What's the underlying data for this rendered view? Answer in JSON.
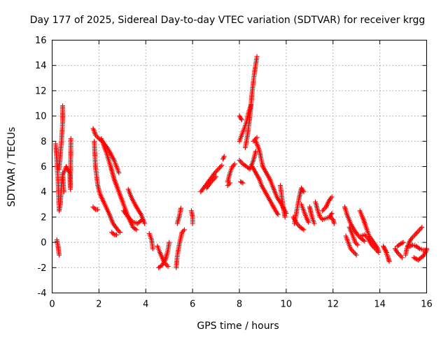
{
  "chart_data": {
    "type": "scatter",
    "title": "Day 177 of 2025, Sidereal Day-to-day VTEC variation (SDTVAR) for receiver krgg",
    "xlabel": "GPS time / hours",
    "ylabel": "SDTVAR / TECUs",
    "xlim": [
      0,
      16
    ],
    "ylim": [
      -4,
      16
    ],
    "xticks": [
      0,
      2,
      4,
      6,
      8,
      10,
      12,
      14,
      16
    ],
    "yticks": [
      -4,
      -2,
      0,
      2,
      4,
      6,
      8,
      10,
      12,
      14,
      16
    ],
    "xtick_labels": [
      "0",
      "2",
      "4",
      "6",
      "8",
      "10",
      "12",
      "14",
      "16"
    ],
    "ytick_labels": [
      "-4",
      "-2",
      "0",
      "2",
      "4",
      "6",
      "8",
      "10",
      "12",
      "14",
      "16"
    ],
    "grid": true,
    "marker": "+",
    "series": [
      {
        "name": "SDTVAR",
        "color": "#ff0000",
        "tracks": [
          [
            [
              0.15,
              7.8
            ],
            [
              0.2,
              6.5
            ],
            [
              0.25,
              5.0
            ],
            [
              0.28,
              3.5
            ],
            [
              0.3,
              2.5
            ],
            [
              0.35,
              3.0
            ],
            [
              0.4,
              4.5
            ],
            [
              0.45,
              5.5
            ],
            [
              0.5,
              4.0
            ]
          ],
          [
            [
              0.3,
              5.8
            ],
            [
              0.35,
              7.0
            ],
            [
              0.4,
              8.0
            ],
            [
              0.45,
              9.5
            ],
            [
              0.45,
              10.8
            ]
          ],
          [
            [
              0.2,
              0.2
            ],
            [
              0.25,
              -0.3
            ],
            [
              0.3,
              -1.0
            ]
          ],
          [
            [
              0.5,
              5.5
            ],
            [
              0.6,
              6.0
            ],
            [
              0.75,
              5.5
            ],
            [
              0.78,
              4.2
            ],
            [
              0.8,
              8.2
            ]
          ],
          [
            [
              1.75,
              9.0
            ],
            [
              1.8,
              8.8
            ],
            [
              1.85,
              8.5
            ],
            [
              2.0,
              8.2
            ],
            [
              2.15,
              8.0
            ],
            [
              2.35,
              7.5
            ],
            [
              2.5,
              7.0
            ],
            [
              2.65,
              6.5
            ],
            [
              2.75,
              6.0
            ],
            [
              2.85,
              5.5
            ]
          ],
          [
            [
              1.8,
              8.0
            ],
            [
              1.85,
              6.0
            ],
            [
              1.95,
              4.5
            ],
            [
              2.05,
              3.8
            ],
            [
              2.25,
              3.0
            ],
            [
              2.45,
              2.2
            ],
            [
              2.6,
              1.5
            ],
            [
              2.8,
              1.0
            ],
            [
              2.9,
              0.8
            ]
          ],
          [
            [
              1.75,
              2.8
            ],
            [
              1.85,
              2.6
            ],
            [
              1.95,
              2.6
            ]
          ],
          [
            [
              2.1,
              8.2
            ],
            [
              2.3,
              7.2
            ],
            [
              2.5,
              6.0
            ],
            [
              2.65,
              5.0
            ],
            [
              2.85,
              4.0
            ],
            [
              3.05,
              3.0
            ],
            [
              3.25,
              2.0
            ],
            [
              3.45,
              1.2
            ],
            [
              3.6,
              1.0
            ]
          ],
          [
            [
              2.55,
              0.8
            ],
            [
              2.65,
              0.6
            ],
            [
              2.75,
              0.6
            ]
          ],
          [
            [
              3.25,
              4.2
            ],
            [
              3.4,
              3.5
            ],
            [
              3.6,
              2.8
            ],
            [
              3.8,
              2.2
            ],
            [
              3.95,
              1.5
            ]
          ],
          [
            [
              3.05,
              2.5
            ],
            [
              3.25,
              2.0
            ],
            [
              3.45,
              1.6
            ],
            [
              3.65,
              1.5
            ],
            [
              3.85,
              1.8
            ]
          ],
          [
            [
              4.15,
              0.7
            ],
            [
              4.25,
              0.2
            ],
            [
              4.3,
              -0.5
            ]
          ],
          [
            [
              4.5,
              -0.3
            ],
            [
              4.6,
              -0.8
            ],
            [
              4.7,
              -1.2
            ],
            [
              4.8,
              -1.6
            ],
            [
              4.95,
              -1.9
            ]
          ],
          [
            [
              4.55,
              -2.0
            ],
            [
              4.7,
              -1.8
            ],
            [
              4.85,
              -1.3
            ],
            [
              4.95,
              -0.6
            ],
            [
              5.0,
              0.0
            ]
          ],
          [
            [
              5.3,
              -2.0
            ],
            [
              5.35,
              -1.0
            ],
            [
              5.45,
              0.0
            ],
            [
              5.55,
              0.8
            ],
            [
              5.65,
              1.0
            ]
          ],
          [
            [
              5.35,
              1.5
            ],
            [
              5.45,
              2.2
            ],
            [
              5.5,
              2.7
            ]
          ],
          [
            [
              5.95,
              2.5
            ],
            [
              6.0,
              2.0
            ],
            [
              6.0,
              1.5
            ]
          ],
          [
            [
              6.35,
              4.0
            ],
            [
              6.55,
              4.5
            ],
            [
              6.75,
              5.0
            ],
            [
              6.95,
              5.5
            ],
            [
              7.1,
              5.8
            ],
            [
              7.25,
              6.1
            ]
          ],
          [
            [
              6.6,
              4.3
            ],
            [
              6.8,
              4.8
            ],
            [
              7.0,
              5.2
            ]
          ],
          [
            [
              7.3,
              6.6
            ],
            [
              7.35,
              6.8
            ]
          ],
          [
            [
              7.5,
              4.8
            ],
            [
              7.6,
              5.5
            ],
            [
              7.7,
              6.0
            ],
            [
              7.8,
              6.2
            ]
          ],
          [
            [
              7.5,
              4.5
            ],
            [
              7.6,
              4.7
            ]
          ],
          [
            [
              8.0,
              8.0
            ],
            [
              8.1,
              8.5
            ],
            [
              8.2,
              9.0
            ],
            [
              8.3,
              9.5
            ],
            [
              8.4,
              10.3
            ],
            [
              8.5,
              10.9
            ]
          ],
          [
            [
              8.25,
              7.5
            ],
            [
              8.35,
              8.5
            ],
            [
              8.45,
              10.0
            ],
            [
              8.55,
              12.0
            ],
            [
              8.65,
              13.5
            ],
            [
              8.75,
              14.7
            ]
          ],
          [
            [
              8.0,
              10.0
            ],
            [
              8.1,
              9.7
            ]
          ],
          [
            [
              8.0,
              6.5
            ],
            [
              8.15,
              6.2
            ],
            [
              8.3,
              6.0
            ],
            [
              8.45,
              5.8
            ],
            [
              8.6,
              6.5
            ],
            [
              8.7,
              7.2
            ]
          ],
          [
            [
              8.05,
              4.8
            ],
            [
              8.15,
              4.7
            ]
          ],
          [
            [
              8.6,
              8.0
            ],
            [
              8.75,
              8.3
            ]
          ],
          [
            [
              8.55,
              6.0
            ],
            [
              8.7,
              5.5
            ],
            [
              8.85,
              5.0
            ],
            [
              8.95,
              4.5
            ],
            [
              9.1,
              4.0
            ],
            [
              9.25,
              3.5
            ],
            [
              9.4,
              3.0
            ],
            [
              9.55,
              2.5
            ],
            [
              9.65,
              2.2
            ]
          ],
          [
            [
              8.7,
              8.0
            ],
            [
              8.85,
              7.3
            ],
            [
              9.0,
              6.0
            ],
            [
              9.15,
              5.5
            ],
            [
              9.3,
              5.0
            ],
            [
              9.45,
              4.3
            ],
            [
              9.6,
              3.6
            ],
            [
              9.8,
              3.0
            ],
            [
              10.0,
              2.3
            ]
          ],
          [
            [
              9.75,
              4.5
            ],
            [
              9.85,
              3.0
            ],
            [
              9.95,
              2.0
            ]
          ],
          [
            [
              10.35,
              1.5
            ],
            [
              10.45,
              2.5
            ],
            [
              10.55,
              3.5
            ],
            [
              10.65,
              4.3
            ],
            [
              10.75,
              4.0
            ]
          ],
          [
            [
              10.3,
              2.0
            ],
            [
              10.45,
              1.5
            ],
            [
              10.6,
              1.2
            ],
            [
              10.75,
              1.0
            ]
          ],
          [
            [
              10.65,
              3.0
            ],
            [
              10.75,
              2.5
            ],
            [
              10.85,
              2.0
            ],
            [
              10.95,
              1.6
            ]
          ],
          [
            [
              11.0,
              2.8
            ],
            [
              11.1,
              2.0
            ],
            [
              11.2,
              1.5
            ]
          ],
          [
            [
              11.25,
              3.2
            ],
            [
              11.35,
              2.5
            ],
            [
              11.45,
              2.0
            ],
            [
              11.55,
              1.8
            ],
            [
              11.7,
              1.9
            ],
            [
              11.85,
              2.0
            ],
            [
              11.95,
              2.3
            ]
          ],
          [
            [
              11.55,
              2.5
            ],
            [
              11.7,
              2.8
            ],
            [
              11.8,
              3.2
            ],
            [
              11.9,
              3.5
            ],
            [
              11.95,
              3.6
            ]
          ],
          [
            [
              11.9,
              2.0
            ],
            [
              12.0,
              1.8
            ],
            [
              12.05,
              1.5
            ]
          ],
          [
            [
              12.5,
              2.8
            ],
            [
              12.6,
              2.2
            ],
            [
              12.75,
              1.5
            ],
            [
              12.9,
              1.0
            ],
            [
              13.05,
              0.6
            ],
            [
              13.2,
              0.3
            ],
            [
              13.35,
              0.1
            ]
          ],
          [
            [
              12.55,
              0.5
            ],
            [
              12.65,
              0.0
            ],
            [
              12.75,
              -0.5
            ],
            [
              12.9,
              -0.8
            ],
            [
              13.0,
              -1.0
            ]
          ],
          [
            [
              12.7,
              1.2
            ],
            [
              12.85,
              0.5
            ],
            [
              12.95,
              0.0
            ],
            [
              13.05,
              -0.2
            ]
          ],
          [
            [
              13.15,
              2.5
            ],
            [
              13.3,
              1.8
            ],
            [
              13.45,
              1.0
            ],
            [
              13.55,
              0.5
            ],
            [
              13.7,
              0.1
            ],
            [
              13.85,
              -0.3
            ],
            [
              13.95,
              -0.7
            ]
          ],
          [
            [
              13.2,
              0.5
            ],
            [
              13.35,
              0.6
            ],
            [
              13.5,
              0.3
            ],
            [
              13.65,
              -0.2
            ],
            [
              13.8,
              -0.5
            ],
            [
              13.95,
              -0.8
            ]
          ],
          [
            [
              14.15,
              -0.3
            ],
            [
              14.25,
              -0.7
            ],
            [
              14.35,
              -1.2
            ],
            [
              14.4,
              -1.5
            ]
          ],
          [
            [
              14.2,
              -0.5
            ],
            [
              14.3,
              -0.8
            ]
          ],
          [
            [
              14.65,
              -0.5
            ],
            [
              14.75,
              -0.8
            ],
            [
              14.85,
              -1.0
            ],
            [
              14.95,
              -1.2
            ]
          ],
          [
            [
              14.75,
              -0.3
            ],
            [
              14.9,
              -0.1
            ],
            [
              15.0,
              0.0
            ]
          ],
          [
            [
              15.1,
              -1.0
            ],
            [
              15.15,
              -0.5
            ],
            [
              15.25,
              0.0
            ],
            [
              15.35,
              0.3
            ],
            [
              15.45,
              0.5
            ],
            [
              15.55,
              0.7
            ],
            [
              15.65,
              0.9
            ],
            [
              15.75,
              1.1
            ],
            [
              15.8,
              1.2
            ]
          ],
          [
            [
              15.2,
              -0.3
            ],
            [
              15.3,
              -0.3
            ],
            [
              15.4,
              -0.2
            ],
            [
              15.55,
              -0.3
            ],
            [
              15.7,
              -0.5
            ],
            [
              15.85,
              -0.6
            ],
            [
              16.0,
              -0.6
            ]
          ],
          [
            [
              15.45,
              -1.2
            ],
            [
              15.55,
              -1.3
            ],
            [
              15.65,
              -1.4
            ],
            [
              15.75,
              -1.2
            ],
            [
              15.85,
              -1.1
            ],
            [
              15.95,
              -0.8
            ],
            [
              16.0,
              -0.5
            ]
          ]
        ]
      }
    ]
  }
}
